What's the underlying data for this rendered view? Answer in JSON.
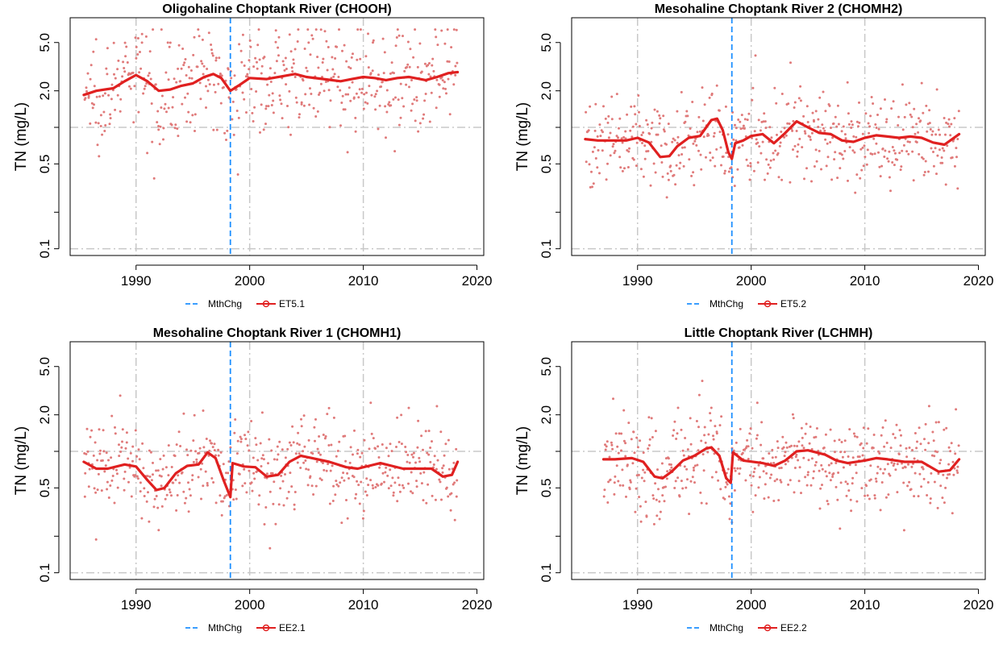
{
  "y_axis_label": "TN (mg/L)",
  "y_ticks": [
    {
      "v": 0.1,
      "label": "0.1"
    },
    {
      "v": 0.5,
      "label": "0.5"
    },
    {
      "v": 2.0,
      "label": "2.0"
    },
    {
      "v": 5.0,
      "label": "5.0"
    }
  ],
  "x_ticks": [
    1990,
    2000,
    2010,
    2020
  ],
  "x_range": [
    1984.2,
    2020.6
  ],
  "y_range": [
    0.088,
    8.0
  ],
  "y_scale": "log",
  "grid": true,
  "legend_placement": "bottom",
  "colors": {
    "method_change": "#1e90ff",
    "trend": "#e02020",
    "points": "#e07a7a",
    "grid": "#c8c8c8"
  },
  "method_change_label": "MthChg",
  "method_change_year": 1998.3,
  "chart_data": [
    {
      "type": "scatter",
      "title": "Oligohaline Choptank River (CHOOH)",
      "station": "ET5.1",
      "ylabel": "TN (mg/L)",
      "point_center": 2.45,
      "point_spread": 0.3,
      "smooth": [
        [
          1985.4,
          1.85
        ],
        [
          1986.5,
          2.0
        ],
        [
          1988.0,
          2.1
        ],
        [
          1989.0,
          2.4
        ],
        [
          1990.0,
          2.7
        ],
        [
          1991.0,
          2.4
        ],
        [
          1992.0,
          2.0
        ],
        [
          1993.0,
          2.05
        ],
        [
          1994.0,
          2.2
        ],
        [
          1995.0,
          2.3
        ],
        [
          1996.0,
          2.6
        ],
        [
          1996.8,
          2.75
        ],
        [
          1997.5,
          2.55
        ],
        [
          1998.3,
          2.0
        ],
        [
          1999.0,
          2.2
        ],
        [
          2000.0,
          2.55
        ],
        [
          2001.5,
          2.5
        ],
        [
          2003.0,
          2.65
        ],
        [
          2004.0,
          2.75
        ],
        [
          2005.0,
          2.6
        ],
        [
          2006.5,
          2.5
        ],
        [
          2008.0,
          2.4
        ],
        [
          2009.0,
          2.5
        ],
        [
          2010.0,
          2.6
        ],
        [
          2011.0,
          2.55
        ],
        [
          2012.0,
          2.45
        ],
        [
          2013.0,
          2.55
        ],
        [
          2014.0,
          2.6
        ],
        [
          2015.5,
          2.45
        ],
        [
          2016.5,
          2.6
        ],
        [
          2017.5,
          2.8
        ],
        [
          2018.3,
          2.85
        ]
      ]
    },
    {
      "type": "scatter",
      "title": "Mesohaline Choptank River 2 (CHOMH2)",
      "station": "ET5.2",
      "ylabel": "TN (mg/L)",
      "point_center": 0.8,
      "point_spread": 0.27,
      "smooth": [
        [
          1985.4,
          0.8
        ],
        [
          1986.5,
          0.78
        ],
        [
          1987.5,
          0.78
        ],
        [
          1989.0,
          0.78
        ],
        [
          1990.0,
          0.82
        ],
        [
          1991.0,
          0.75
        ],
        [
          1992.0,
          0.57
        ],
        [
          1992.8,
          0.58
        ],
        [
          1993.5,
          0.7
        ],
        [
          1994.5,
          0.82
        ],
        [
          1995.5,
          0.85
        ],
        [
          1996.5,
          1.15
        ],
        [
          1997.0,
          1.18
        ],
        [
          1997.5,
          0.95
        ],
        [
          1998.0,
          0.62
        ],
        [
          1998.3,
          0.55
        ],
        [
          1998.6,
          0.74
        ],
        [
          1999.3,
          0.78
        ],
        [
          2000.0,
          0.85
        ],
        [
          2001.0,
          0.88
        ],
        [
          2002.0,
          0.74
        ],
        [
          2003.0,
          0.9
        ],
        [
          2004.0,
          1.12
        ],
        [
          2005.0,
          1.0
        ],
        [
          2006.0,
          0.9
        ],
        [
          2007.0,
          0.88
        ],
        [
          2008.0,
          0.78
        ],
        [
          2009.0,
          0.76
        ],
        [
          2010.0,
          0.82
        ],
        [
          2011.0,
          0.86
        ],
        [
          2012.0,
          0.84
        ],
        [
          2013.0,
          0.82
        ],
        [
          2014.0,
          0.84
        ],
        [
          2015.0,
          0.82
        ],
        [
          2016.0,
          0.75
        ],
        [
          2017.0,
          0.72
        ],
        [
          2018.3,
          0.88
        ]
      ]
    },
    {
      "type": "scatter",
      "title": "Mesohaline Choptank River 1 (CHOMH1)",
      "station": "EE2.1",
      "ylabel": "TN (mg/L)",
      "point_center": 0.78,
      "point_spread": 0.26,
      "smooth": [
        [
          1985.4,
          0.82
        ],
        [
          1986.5,
          0.72
        ],
        [
          1987.5,
          0.72
        ],
        [
          1989.0,
          0.78
        ],
        [
          1990.0,
          0.75
        ],
        [
          1991.0,
          0.58
        ],
        [
          1991.8,
          0.48
        ],
        [
          1992.5,
          0.5
        ],
        [
          1993.5,
          0.66
        ],
        [
          1994.5,
          0.76
        ],
        [
          1995.5,
          0.78
        ],
        [
          1996.3,
          0.98
        ],
        [
          1997.0,
          0.88
        ],
        [
          1997.7,
          0.58
        ],
        [
          1998.3,
          0.42
        ],
        [
          1998.5,
          0.8
        ],
        [
          1999.5,
          0.75
        ],
        [
          2000.5,
          0.74
        ],
        [
          2001.5,
          0.62
        ],
        [
          2002.5,
          0.64
        ],
        [
          2003.5,
          0.82
        ],
        [
          2004.5,
          0.92
        ],
        [
          2005.5,
          0.88
        ],
        [
          2007.0,
          0.82
        ],
        [
          2008.5,
          0.74
        ],
        [
          2009.5,
          0.72
        ],
        [
          2010.5,
          0.76
        ],
        [
          2011.5,
          0.8
        ],
        [
          2012.5,
          0.76
        ],
        [
          2013.5,
          0.72
        ],
        [
          2015.0,
          0.72
        ],
        [
          2016.0,
          0.72
        ],
        [
          2017.0,
          0.62
        ],
        [
          2017.8,
          0.64
        ],
        [
          2018.3,
          0.82
        ]
      ]
    },
    {
      "type": "scatter",
      "title": "Little Choptank River (LCHMH)",
      "station": "EE2.2",
      "ylabel": "TN (mg/L)",
      "point_center": 0.82,
      "point_spread": 0.27,
      "smooth": [
        [
          1987.0,
          0.86
        ],
        [
          1988.0,
          0.86
        ],
        [
          1989.5,
          0.88
        ],
        [
          1990.5,
          0.82
        ],
        [
          1991.5,
          0.62
        ],
        [
          1992.2,
          0.6
        ],
        [
          1993.0,
          0.68
        ],
        [
          1994.0,
          0.84
        ],
        [
          1995.0,
          0.92
        ],
        [
          1996.0,
          1.05
        ],
        [
          1996.5,
          1.08
        ],
        [
          1997.2,
          0.92
        ],
        [
          1997.8,
          0.6
        ],
        [
          1998.2,
          0.55
        ],
        [
          1998.4,
          0.98
        ],
        [
          1999.3,
          0.84
        ],
        [
          2001.0,
          0.8
        ],
        [
          2002.0,
          0.76
        ],
        [
          2003.0,
          0.84
        ],
        [
          2004.0,
          1.0
        ],
        [
          2005.0,
          1.02
        ],
        [
          2006.5,
          0.94
        ],
        [
          2007.5,
          0.84
        ],
        [
          2008.5,
          0.8
        ],
        [
          2010.0,
          0.84
        ],
        [
          2011.0,
          0.88
        ],
        [
          2012.0,
          0.86
        ],
        [
          2013.5,
          0.82
        ],
        [
          2015.0,
          0.82
        ],
        [
          2016.5,
          0.68
        ],
        [
          2017.5,
          0.7
        ],
        [
          2018.3,
          0.86
        ]
      ]
    }
  ]
}
